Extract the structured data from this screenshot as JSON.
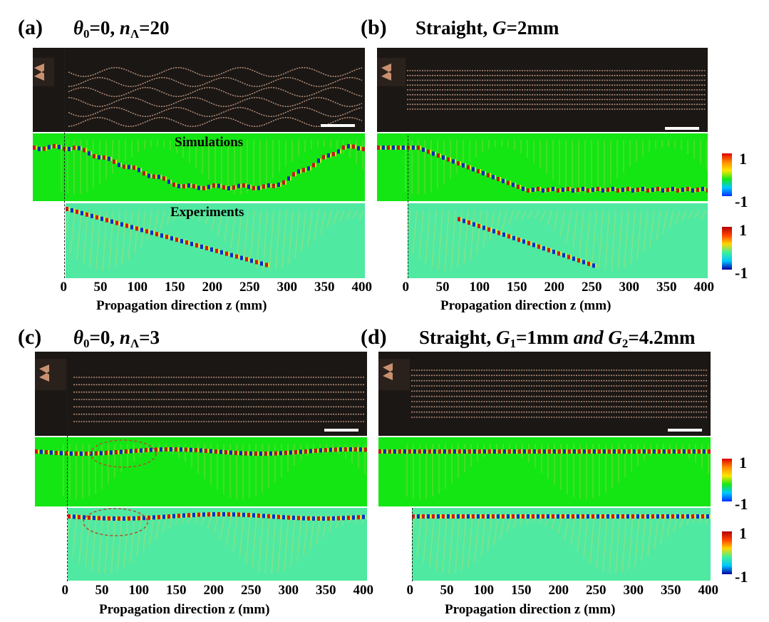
{
  "panels": {
    "a": {
      "label": "(a)",
      "title_parts": [
        {
          "t": "θ",
          "style": "i"
        },
        {
          "t": "0",
          "style": "sub"
        },
        {
          "t": "=0, ",
          "style": "n"
        },
        {
          "t": "n",
          "style": "i"
        },
        {
          "t": "Λ",
          "style": "sub"
        },
        {
          "t": "=20",
          "style": "n"
        }
      ],
      "overlay_top": "Simulations",
      "overlay_bottom": "Experiments"
    },
    "b": {
      "label": "(b)",
      "title_parts": [
        {
          "t": "Straight, ",
          "style": "n"
        },
        {
          "t": "G",
          "style": "i"
        },
        {
          "t": "=2mm",
          "style": "n"
        }
      ]
    },
    "c": {
      "label": "(c)",
      "title_parts": [
        {
          "t": "θ",
          "style": "i"
        },
        {
          "t": "0",
          "style": "sub"
        },
        {
          "t": "=0, ",
          "style": "n"
        },
        {
          "t": "n",
          "style": "i"
        },
        {
          "t": "Λ",
          "style": "sub"
        },
        {
          "t": "=3",
          "style": "n"
        }
      ]
    },
    "d": {
      "label": "(d)",
      "title_parts": [
        {
          "t": "Straight, ",
          "style": "n"
        },
        {
          "t": "G",
          "style": "i"
        },
        {
          "t": "1",
          "style": "sub"
        },
        {
          "t": "=1mm ",
          "style": "n"
        },
        {
          "t": "and ",
          "style": "i"
        },
        {
          "t": "G",
          "style": "i"
        },
        {
          "t": "2",
          "style": "sub"
        },
        {
          "t": "=4.2mm",
          "style": "n"
        }
      ]
    }
  },
  "axis": {
    "ticks": [
      "0",
      "50",
      "100",
      "150",
      "200",
      "250",
      "300",
      "350",
      "400"
    ],
    "xlabel": "Propagation direction z (mm)"
  },
  "colorbar": {
    "max_label": "1",
    "min_label": "-1"
  },
  "colors": {
    "sim_background": "#14e614",
    "exp_background": "#4fe9a2",
    "photo_background": "#1b1714",
    "wave_red": "#d8001a",
    "wave_blue": "#0018d0",
    "wave_yellow": "#f2ea16",
    "annotation_dash": "#b05030"
  }
}
